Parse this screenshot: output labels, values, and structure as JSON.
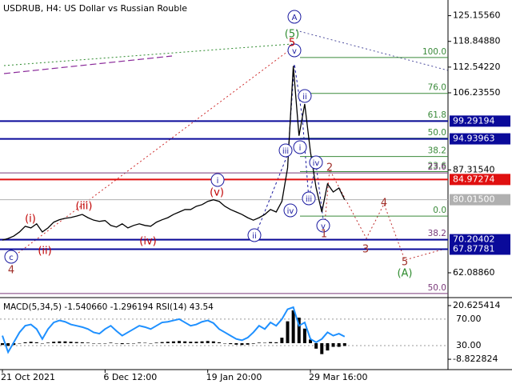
{
  "chart_data": [
    {
      "type": "line",
      "title": "USDRUB, H4:  US Dollar vs Russian Rouble",
      "color": "#000000",
      "categories": [
        "21 Oct 2021",
        null,
        null,
        null,
        null,
        null,
        null,
        null,
        null,
        null,
        null,
        null,
        null,
        null,
        null,
        null,
        null,
        null,
        "6 Dec 12:00",
        null,
        null,
        null,
        null,
        null,
        null,
        null,
        null,
        null,
        null,
        null,
        null,
        null,
        null,
        null,
        null,
        null,
        "19 Jan 20:00",
        null,
        null,
        null,
        null,
        null,
        null,
        null,
        null,
        null,
        null,
        null,
        null,
        null,
        null,
        null,
        null,
        null,
        "29 Mar 16:00",
        null,
        null,
        null,
        null,
        null,
        null
      ],
      "values": [
        70.1,
        70.5,
        71.1,
        72.1,
        73.5,
        73.1,
        74.1,
        72.1,
        73.1,
        74.5,
        75.1,
        75.45,
        75.65,
        76.0,
        76.4,
        75.6,
        75.0,
        74.7,
        74.9,
        73.7,
        73.3,
        74.1,
        73.1,
        73.7,
        74.1,
        73.7,
        73.5,
        74.5,
        75.1,
        75.6,
        76.4,
        77.0,
        77.6,
        77.6,
        78.4,
        78.8,
        79.6,
        80.0,
        79.6,
        78.4,
        77.6,
        77.0,
        76.4,
        75.6,
        75.0,
        75.6,
        76.4,
        77.6,
        77.0,
        79.6,
        87.8,
        112.8,
        95.7,
        103.5,
        91.8,
        82.9,
        77.0,
        83.9,
        81.9,
        82.9,
        80.0
      ],
      "ylim": [
        56,
        129
      ],
      "yticks": [
        {
          "value": 125.1556,
          "label": "125.15560"
        },
        {
          "value": 118.8488,
          "label": "118.84880"
        },
        {
          "value": 112.5422,
          "label": "112.54220"
        },
        {
          "value": 106.2355,
          "label": "106.23550"
        },
        {
          "value": 87.3154,
          "label": "87.31540"
        },
        {
          "value": 62.0886,
          "label": "62.08860"
        }
      ],
      "levels": [
        {
          "value": 99.29194,
          "color": "#0a0a9a"
        },
        {
          "value": 94.93963,
          "color": "#0a0a9a"
        },
        {
          "value": 84.97274,
          "color": "#e01010"
        },
        {
          "value": 80.015,
          "label": "80.01500",
          "color": "#b0b0b0"
        },
        {
          "value": 70.20402,
          "color": "#0a0a9a"
        },
        {
          "value": 67.87781,
          "color": "#0a0a9a"
        }
      ],
      "fib_levels": [
        {
          "label": "100.0",
          "price": 114.9
        },
        {
          "label": "76.0",
          "price": 106.1
        },
        {
          "label": "61.8",
          "price": 99.4
        },
        {
          "label": "50.0",
          "price": 95.1
        },
        {
          "label": "38.2",
          "price": 90.6
        },
        {
          "label": "23.6",
          "price": 86.9
        },
        {
          "label": "0.0",
          "price": 76.0
        }
      ],
      "fib_color": "#3a8a3a",
      "fib2_levels": [
        {
          "label": "23.6",
          "price": 86.6
        },
        {
          "label": "38.2",
          "price": 70.3
        },
        {
          "label": "50.0",
          "price": 57.0
        }
      ],
      "fib2_color": "#7a3a7a",
      "wave_labels": [
        {
          "text": "A",
          "color": "#1a1aa0",
          "circled": true
        },
        {
          "text": "(5)",
          "color": "#2e8b2e",
          "circled": false
        },
        {
          "text": "v",
          "color": "#1a1aa0",
          "circled": true
        },
        {
          "text": "5",
          "color": "#c00000",
          "circled": false
        },
        {
          "text": "ii",
          "color": "#1a1aa0",
          "circled": true
        },
        {
          "text": "i",
          "color": "#1a1aa0",
          "circled": true
        },
        {
          "text": "iii",
          "color": "#1a1aa0",
          "circled": true
        },
        {
          "text": "iv",
          "color": "#1a1aa0",
          "circled": true
        },
        {
          "text": "iii",
          "color": "#1a1aa0",
          "circled": true
        },
        {
          "text": "iv",
          "color": "#1a1aa0",
          "circled": true
        },
        {
          "text": "v",
          "color": "#1a1aa0",
          "circled": true
        },
        {
          "text": "i",
          "color": "#1a1aa0",
          "circled": true
        },
        {
          "text": "ii",
          "color": "#1a1aa0",
          "circled": true
        },
        {
          "text": "2",
          "color": "#a0302a",
          "circled": false
        },
        {
          "text": "1",
          "color": "#a0302a",
          "circled": false
        },
        {
          "text": "3",
          "color": "#a0302a",
          "circled": false
        },
        {
          "text": "4",
          "color": "#a0302a",
          "circled": false
        },
        {
          "text": "5",
          "color": "#a0302a",
          "circled": false
        },
        {
          "text": "(A)",
          "color": "#2e8b2e",
          "circled": false
        },
        {
          "text": "c",
          "color": "#1a1aa0",
          "circled": true
        },
        {
          "text": "4",
          "color": "#a0302a",
          "circled": false
        },
        {
          "text": "(i)",
          "color": "#c00000",
          "circled": false
        },
        {
          "text": "(ii)",
          "color": "#c00000",
          "circled": false
        },
        {
          "text": "(iii)",
          "color": "#c00000",
          "circled": false
        },
        {
          "text": "(iv)",
          "color": "#c00000",
          "circled": false
        },
        {
          "text": "(v)",
          "color": "#c00000",
          "circled": false
        }
      ]
    },
    {
      "type": "line",
      "title": "MACD(5,34,5) -1.540660 -1.296194 RSI(14) 43.54",
      "series": [
        {
          "type": "bar",
          "color": "#000000",
          "values": [
            -1,
            -1.5,
            -1,
            0,
            0.5,
            0.8,
            0.5,
            0,
            0.3,
            0.8,
            1,
            1,
            0.8,
            0.6,
            0.5,
            0.3,
            0,
            -0.2,
            0,
            0.3,
            0,
            -0.5,
            -0.3,
            0,
            0.3,
            0.2,
            0,
            0.3,
            0.6,
            0.8,
            1,
            1.2,
            1,
            0.8,
            0.8,
            1,
            1.2,
            1,
            0.5,
            0,
            -0.5,
            -0.8,
            -1,
            -0.8,
            -0.3,
            0.3,
            0.2,
            0.6,
            0.5,
            3,
            12,
            18,
            14,
            8,
            2,
            -3,
            -6,
            -4,
            -2,
            -2,
            -1.54066
          ]
        },
        {
          "type": "line",
          "axis": "y2",
          "color": "#1e90ff",
          "values": [
            45,
            20,
            35,
            50,
            60,
            62,
            55,
            40,
            55,
            65,
            68,
            66,
            62,
            60,
            58,
            55,
            50,
            48,
            55,
            60,
            52,
            45,
            50,
            55,
            60,
            58,
            55,
            60,
            65,
            66,
            68,
            70,
            65,
            60,
            62,
            66,
            68,
            64,
            55,
            50,
            45,
            40,
            38,
            42,
            50,
            60,
            55,
            65,
            60,
            70,
            85,
            88,
            60,
            65,
            40,
            35,
            40,
            50,
            45,
            48,
            43.54
          ]
        }
      ],
      "ylim": [
        -14.5,
        23.7
      ],
      "yticks": [
        20.625414,
        -8.822824
      ],
      "y2lim": [
        -6.4,
        99
      ],
      "y2ticks": [
        {
          "value": 70,
          "label": "70.00"
        },
        {
          "value": 30,
          "label": "30.00"
        }
      ]
    }
  ]
}
